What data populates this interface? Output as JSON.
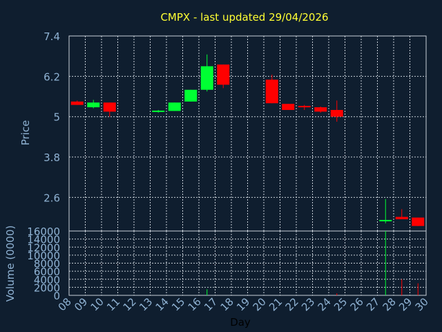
{
  "chart_data": {
    "type": "candlestick",
    "title": "CMPX - last updated 29/04/2026",
    "xlabel": "Day",
    "price_axis": {
      "label": "Price",
      "ylim": [
        1.6,
        7.4
      ],
      "ticks": [
        "2.6",
        "3.8",
        "5",
        "6.2",
        "7.4"
      ]
    },
    "volume_axis": {
      "label": "Volume (0000)",
      "ylim": [
        0,
        16000
      ],
      "ticks": [
        "0",
        "2000",
        "4000",
        "6000",
        "8000",
        "10000",
        "12000",
        "14000",
        "16000"
      ]
    },
    "x_ticks": [
      "08",
      "09",
      "10",
      "11",
      "12",
      "13",
      "14",
      "15",
      "16",
      "17",
      "18",
      "19",
      "20",
      "21",
      "22",
      "23",
      "24",
      "25",
      "26",
      "27",
      "28",
      "29",
      "30"
    ],
    "colors": {
      "up": "#00ff33",
      "down": "#ff0000",
      "title": "#ffff33",
      "axis_text": "#8fb2d3",
      "background": "#0f1e2f",
      "grid": "#c8d0d8"
    },
    "candles": [
      {
        "day": "08",
        "open": 5.45,
        "high": 5.48,
        "low": 5.35,
        "close": 5.35,
        "volume": 0
      },
      {
        "day": "09",
        "open": 5.28,
        "high": 5.5,
        "low": 5.25,
        "close": 5.42,
        "volume": 0
      },
      {
        "day": "10",
        "open": 5.42,
        "high": 5.42,
        "low": 5.0,
        "close": 5.15,
        "volume": 0
      },
      {
        "day": "13",
        "open": 5.17,
        "high": 5.2,
        "low": 5.12,
        "close": 5.18,
        "volume": 0
      },
      {
        "day": "14",
        "open": 5.17,
        "high": 5.42,
        "low": 5.17,
        "close": 5.42,
        "volume": 0
      },
      {
        "day": "15",
        "open": 5.45,
        "high": 5.8,
        "low": 5.45,
        "close": 5.8,
        "volume": 0
      },
      {
        "day": "16",
        "open": 5.8,
        "high": 6.85,
        "low": 5.75,
        "close": 6.5,
        "volume": 1500
      },
      {
        "day": "17",
        "open": 6.55,
        "high": 6.55,
        "low": 5.85,
        "close": 5.95,
        "volume": 0
      },
      {
        "day": "20",
        "open": 6.1,
        "high": 6.25,
        "low": 5.4,
        "close": 5.4,
        "volume": 0
      },
      {
        "day": "21",
        "open": 5.38,
        "high": 5.38,
        "low": 5.2,
        "close": 5.2,
        "volume": 0
      },
      {
        "day": "22",
        "open": 5.32,
        "high": 5.35,
        "low": 5.2,
        "close": 5.3,
        "volume": 0
      },
      {
        "day": "23",
        "open": 5.28,
        "high": 5.3,
        "low": 5.12,
        "close": 5.15,
        "volume": 0
      },
      {
        "day": "24",
        "open": 5.2,
        "high": 5.48,
        "low": 4.85,
        "close": 5.0,
        "volume": 500
      },
      {
        "day": "27",
        "open": 1.9,
        "high": 2.55,
        "low": 1.83,
        "close": 1.93,
        "volume": 16000
      },
      {
        "day": "28",
        "open": 2.02,
        "high": 2.25,
        "low": 1.95,
        "close": 1.95,
        "volume": 4000
      },
      {
        "day": "29",
        "open": 2.0,
        "high": 2.0,
        "low": 1.75,
        "close": 1.75,
        "volume": 3000
      }
    ]
  }
}
